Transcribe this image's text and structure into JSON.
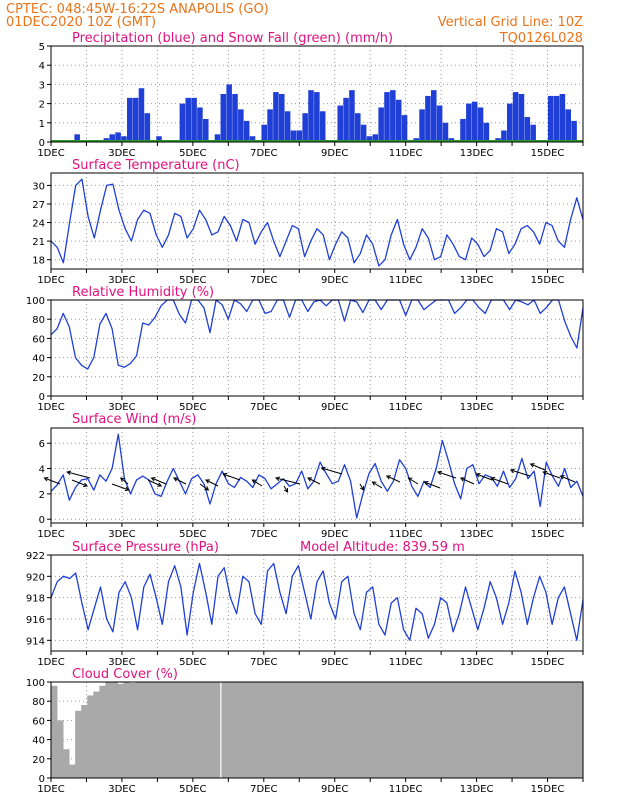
{
  "header": {
    "station": "CPTEC:  048:45W-16:22S  ANAPOLIS (GO)",
    "run": "01DEC2020 10Z (GMT)",
    "grid_note": "Vertical Grid Line: 10Z",
    "code": "TQ0126L028"
  },
  "colors": {
    "header_text": "#e8741c",
    "panel_title": "#e0117f",
    "series_line": "#1f3fd6",
    "snow": "#2e9a2e",
    "cloud": "#a9a9a9",
    "frame": "#000000",
    "grid": "#9a9a9a"
  },
  "chart_data": [
    {
      "type": "bar",
      "title": "Precipitation (blue) and Snow Fall (green) (mm/h)",
      "ylim": [
        0,
        5
      ],
      "yticks": [
        "0",
        "1",
        "2",
        "3",
        "4",
        "5"
      ],
      "xticks": [
        "1DEC",
        "3DEC",
        "5DEC",
        "7DEC",
        "9DEC",
        "11DEC",
        "13DEC",
        "15DEC"
      ],
      "days": 15,
      "series": [
        {
          "name": "Precipitation",
          "values": [
            0.0,
            0.0,
            0.0,
            0.1,
            0.4,
            0.0,
            0.0,
            0.0,
            0.1,
            0.2,
            0.4,
            0.5,
            0.3,
            2.3,
            2.3,
            2.8,
            1.5,
            0.0,
            0.3,
            0.1,
            0.0,
            0.1,
            2.0,
            2.3,
            2.3,
            1.8,
            1.2,
            0.1,
            0.4,
            2.5,
            3.0,
            2.5,
            1.7,
            1.1,
            0.3,
            0.0,
            0.9,
            1.7,
            2.6,
            2.5,
            1.6,
            0.6,
            0.6,
            1.5,
            2.7,
            2.6,
            1.6,
            0.0,
            0.1,
            1.9,
            2.3,
            2.7,
            1.5,
            0.9,
            0.3,
            0.4,
            1.8,
            2.6,
            2.7,
            2.2,
            1.4,
            0.0,
            0.2,
            1.7,
            2.4,
            2.7,
            1.9,
            1.0,
            0.2,
            0.1,
            1.2,
            2.0,
            2.1,
            1.8,
            1.0,
            0.1,
            0.2,
            0.6,
            2.0,
            2.6,
            2.5,
            1.3,
            0.9,
            0.0,
            0.0,
            2.4,
            2.4,
            2.5,
            1.7,
            1.1,
            0.1
          ]
        },
        {
          "name": "Snow Fall",
          "values": [
            0.0,
            0.0,
            0.0,
            0.0,
            0.0,
            0.0,
            0.0,
            0.0,
            0.0,
            0.0,
            0.0,
            0.0,
            0.0,
            0.0,
            0.0,
            0.0,
            0.0,
            0.0,
            0.0,
            0.0,
            0.0,
            0.0,
            0.0,
            0.0,
            0.0,
            0.0,
            0.0,
            0.0,
            0.0,
            0.0,
            0.0,
            0.0,
            0.0,
            0.0,
            0.0,
            0.0,
            0.0,
            0.0,
            0.0,
            0.0,
            0.0,
            0.0,
            0.0,
            0.0,
            0.0,
            0.0,
            0.0,
            0.0,
            0.0,
            0.0,
            0.0,
            0.0,
            0.0,
            0.0,
            0.0,
            0.0,
            0.0,
            0.0,
            0.0,
            0.0,
            0.0,
            0.0,
            0.0,
            0.0,
            0.0,
            0.0,
            0.0,
            0.0,
            0.0,
            0.0,
            0.0,
            0.0,
            0.0,
            0.0,
            0.0,
            0.0,
            0.0,
            0.0,
            0.0,
            0.0,
            0.0,
            0.0,
            0.0,
            0.0,
            0.0,
            0.0,
            0.0,
            0.0,
            0.0,
            0.0,
            0.0
          ]
        }
      ]
    },
    {
      "type": "line",
      "title": "Surface Temperature (nC)",
      "ylim": [
        16.5,
        32
      ],
      "yticks": [
        18,
        21,
        24,
        27,
        30
      ],
      "xticks": [
        "1DEC",
        "3DEC",
        "5DEC",
        "7DEC",
        "9DEC",
        "11DEC",
        "13DEC",
        "15DEC"
      ],
      "days": 15,
      "values": [
        21.0,
        20.0,
        17.5,
        24.0,
        30.0,
        31.0,
        25.0,
        21.5,
        26.0,
        30.0,
        30.2,
        26.0,
        23.0,
        21.0,
        24.5,
        26.0,
        25.5,
        22.0,
        20.0,
        22.0,
        25.5,
        25.0,
        21.5,
        23.0,
        26.0,
        24.5,
        22.0,
        22.5,
        25.0,
        23.5,
        21.0,
        24.5,
        24.0,
        20.5,
        22.5,
        24.0,
        21.0,
        18.5,
        21.0,
        23.5,
        23.0,
        18.5,
        21.0,
        23.0,
        22.0,
        18.0,
        20.5,
        22.5,
        21.5,
        17.5,
        19.0,
        22.0,
        20.5,
        17.0,
        18.0,
        22.0,
        24.5,
        20.5,
        18.0,
        20.0,
        23.0,
        21.5,
        18.0,
        18.5,
        22.0,
        20.5,
        18.5,
        18.0,
        21.5,
        20.5,
        18.5,
        19.5,
        23.0,
        22.5,
        19.0,
        20.5,
        23.0,
        23.5,
        22.5,
        20.5,
        24.0,
        23.5,
        21.0,
        20.0,
        24.5,
        28.0,
        24.5
      ]
    },
    {
      "type": "line",
      "title": "Relative Humidity (%)",
      "ylim": [
        0,
        100
      ],
      "yticks": [
        0,
        20,
        40,
        60,
        80,
        100
      ],
      "xticks": [
        "1DEC",
        "3DEC",
        "5DEC",
        "7DEC",
        "9DEC",
        "11DEC",
        "13DEC",
        "15DEC"
      ],
      "days": 15,
      "values": [
        64,
        70,
        86,
        72,
        40,
        32,
        28,
        40,
        75,
        86,
        70,
        32,
        30,
        34,
        42,
        76,
        74,
        82,
        94,
        100,
        100,
        85,
        76,
        100,
        100,
        92,
        66,
        100,
        95,
        80,
        100,
        96,
        88,
        100,
        100,
        86,
        88,
        100,
        100,
        82,
        100,
        100,
        88,
        98,
        100,
        94,
        100,
        100,
        78,
        100,
        98,
        87,
        100,
        100,
        90,
        100,
        100,
        100,
        84,
        100,
        100,
        90,
        95,
        100,
        100,
        100,
        86,
        92,
        100,
        100,
        92,
        86,
        100,
        100,
        100,
        90,
        100,
        98,
        95,
        100,
        86,
        92,
        100,
        100,
        78,
        62,
        50,
        92
      ]
    },
    {
      "type": "line",
      "title": "Surface Wind (m/s)",
      "ylim": [
        -0.3,
        7.2
      ],
      "yticks": [
        0,
        2,
        4,
        6
      ],
      "xticks": [
        "1DEC",
        "3DEC",
        "5DEC",
        "7DEC",
        "9DEC",
        "11DEC",
        "13DEC",
        "15DEC"
      ],
      "days": 15,
      "values": [
        2.2,
        2.7,
        3.5,
        1.5,
        2.5,
        3.1,
        3.2,
        2.3,
        3.5,
        3.0,
        4.0,
        6.7,
        3.2,
        2.0,
        3.1,
        3.4,
        3.1,
        2.0,
        1.8,
        3.0,
        4.0,
        3.0,
        2.0,
        3.2,
        3.5,
        2.8,
        1.2,
        2.8,
        3.8,
        2.8,
        2.5,
        3.3,
        3.0,
        2.5,
        3.5,
        3.2,
        2.4,
        2.8,
        3.2,
        2.6,
        2.8,
        3.8,
        2.4,
        3.0,
        4.5,
        3.6,
        2.8,
        3.0,
        4.3,
        3.0,
        0.1,
        2.0,
        3.6,
        4.4,
        3.0,
        2.2,
        3.0,
        4.7,
        4.0,
        2.6,
        1.8,
        3.0,
        2.5,
        4.0,
        6.2,
        4.6,
        2.8,
        1.6,
        4.0,
        4.3,
        2.8,
        3.5,
        3.3,
        2.6,
        3.8,
        2.5,
        3.2,
        4.8,
        3.2,
        3.8,
        1.0,
        4.5,
        3.4,
        2.6,
        4.0,
        2.5,
        3.0,
        1.8
      ]
    },
    {
      "type": "line",
      "title": "Surface Pressure (hPa)",
      "annotation": "Model Altitude: 839.59  m",
      "ylim": [
        913,
        922
      ],
      "yticks": [
        914,
        916,
        918,
        920,
        922
      ],
      "xticks": [
        "1DEC",
        "3DEC",
        "5DEC",
        "7DEC",
        "9DEC",
        "11DEC",
        "13DEC",
        "15DEC"
      ],
      "days": 15,
      "values": [
        918.0,
        919.5,
        920.0,
        919.8,
        920.3,
        917.5,
        915.0,
        917.0,
        919.0,
        916.0,
        914.8,
        918.5,
        919.5,
        918.0,
        915.0,
        919.0,
        920.2,
        918.0,
        915.5,
        919.5,
        921.0,
        919.0,
        914.5,
        918.5,
        921.2,
        918.5,
        915.5,
        920.0,
        920.8,
        918.0,
        916.5,
        920.0,
        919.5,
        916.5,
        915.5,
        920.5,
        921.2,
        918.5,
        916.5,
        920.0,
        921.0,
        918.5,
        916.0,
        919.5,
        920.5,
        917.5,
        916.0,
        919.5,
        920.0,
        916.5,
        915.0,
        918.5,
        919.0,
        915.5,
        914.5,
        917.5,
        918.0,
        915.0,
        914.0,
        917.0,
        916.5,
        914.2,
        915.5,
        918.0,
        917.5,
        914.8,
        916.5,
        919.0,
        917.0,
        915.0,
        917.0,
        919.5,
        918.0,
        915.5,
        917.5,
        920.5,
        918.5,
        915.5,
        918.0,
        920.0,
        918.5,
        915.5,
        918.0,
        919.0,
        916.5,
        914.0,
        917.8
      ]
    },
    {
      "type": "area",
      "title": "Cloud Cover (%)",
      "ylim": [
        0,
        100
      ],
      "yticks": [
        0,
        20,
        40,
        60,
        80,
        100
      ],
      "xticks": [
        "1DEC",
        "3DEC",
        "5DEC",
        "7DEC",
        "9DEC",
        "11DEC",
        "13DEC",
        "15DEC"
      ],
      "days": 15,
      "values": [
        96,
        60,
        30,
        14,
        70,
        76,
        86,
        90,
        96,
        100,
        100,
        98,
        100,
        99,
        100,
        100,
        100,
        100,
        100,
        100,
        100,
        100,
        100,
        100,
        100,
        100,
        100,
        100,
        100,
        100,
        100,
        100,
        100,
        100,
        100,
        100,
        100,
        100,
        100,
        100,
        100,
        100,
        100,
        100,
        100,
        100,
        100,
        100,
        100,
        100,
        100,
        100,
        100,
        100,
        100,
        100,
        100,
        100,
        100,
        100,
        100,
        100,
        100,
        100,
        100,
        100,
        100,
        100,
        100,
        100,
        100,
        100,
        100,
        100,
        100,
        100,
        100,
        100,
        100,
        100,
        100,
        100,
        100,
        100,
        100,
        100,
        100,
        100
      ]
    }
  ]
}
